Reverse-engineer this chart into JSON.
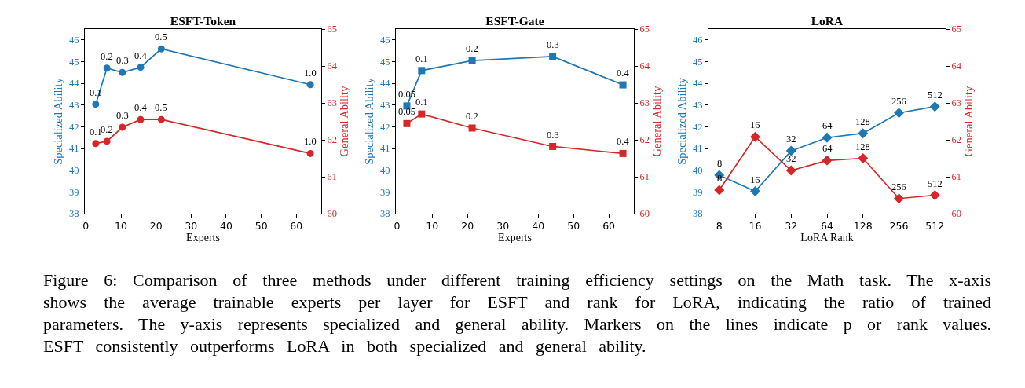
{
  "chart_data": [
    {
      "type": "line",
      "title": "ESFT-Token",
      "xlabel": "Experts",
      "ylabel": "Specialized Ability",
      "y2label": "General Ability",
      "x": [
        2.8,
        6.0,
        10.4,
        15.6,
        21.5,
        64
      ],
      "xlim": [
        -0.3,
        67.1
      ],
      "xticks": [
        0,
        10,
        20,
        30,
        40,
        50,
        60
      ],
      "ylim": [
        38,
        46.5
      ],
      "yticks": [
        38,
        39,
        40,
        41,
        42,
        43,
        44,
        45,
        46
      ],
      "y2lim": [
        60,
        65
      ],
      "y2ticks": [
        60,
        61,
        62,
        63,
        64,
        65
      ],
      "marker": "circle",
      "series": [
        {
          "color": "#1f77b4",
          "values": [
            43.04,
            44.7,
            44.5,
            44.74,
            45.59,
            43.94
          ]
        },
        {
          "color": "#d62728",
          "axis": "y2",
          "values": [
            61.9,
            61.96,
            62.34,
            62.55,
            62.55,
            61.63
          ]
        }
      ],
      "annotations": [
        "Figure 6: Comparison of three methods under different training efficiency settings on the Math task. The x-axis shows the average trainable experts per layer for ESFT and rank for LoRA, indicating the ratio of trained parameters. The y-axis represents specialized and general ability. Markers on the lines indicate p or rank values. ESFT consistently outperforms LoRA in both specialized and general ability.",
        {
          "text": "0.1",
          "x": 2.8,
          "y": 43.04
        },
        {
          "text": "0.2",
          "x": 6.0,
          "y": 44.7
        },
        {
          "text": "0.3",
          "x": 10.4,
          "y": 44.5
        },
        {
          "text": "0.4",
          "x": 15.6,
          "y": 44.74
        },
        {
          "text": "0.5",
          "x": 21.5,
          "y": 45.59
        },
        {
          "text": "1.0",
          "x": 64,
          "y": 43.94
        },
        {
          "text": "0.1",
          "x": 2.8,
          "y": 41.23
        },
        {
          "text": "0.2",
          "x": 6.0,
          "y": 41.33
        },
        {
          "text": "0.3",
          "x": 10.4,
          "y": 41.98
        },
        {
          "text": "0.4",
          "x": 15.6,
          "y": 42.34
        },
        {
          "text": "0.5",
          "x": 21.5,
          "y": 42.34
        },
        {
          "text": "1.0",
          "x": 64,
          "y": 40.77
        }
      ]
    },
    {
      "type": "line",
      "title": "ESFT-Gate",
      "xlabel": "Experts",
      "ylabel": "Specialized Ability",
      "y2label": "General Ability",
      "x": [
        2.8,
        7.0,
        21.3,
        44.1,
        64
      ],
      "xlim": [
        -0.3,
        67.1
      ],
      "xticks": [
        0,
        10,
        20,
        30,
        40,
        50,
        60
      ],
      "ylim": [
        38,
        46.5
      ],
      "yticks": [
        38,
        39,
        40,
        41,
        42,
        43,
        44,
        45,
        46
      ],
      "y2lim": [
        60,
        65
      ],
      "y2ticks": [
        60,
        61,
        62,
        63,
        64,
        65
      ],
      "marker": "square",
      "series": [
        {
          "color": "#1f77b4",
          "values": [
            42.96,
            44.59,
            45.05,
            45.24,
            43.93
          ]
        },
        {
          "color": "#d62728",
          "axis": "y2",
          "values": [
            62.44,
            62.7,
            62.32,
            61.82,
            61.63
          ]
        }
      ],
      "annotations": [
        {
          "text": "0.05",
          "x": 2.8,
          "y": 42.96
        },
        {
          "text": "0.1",
          "x": 7.0,
          "y": 44.59
        },
        {
          "text": "0.2",
          "x": 21.3,
          "y": 45.05
        },
        {
          "text": "0.3",
          "x": 44.1,
          "y": 45.24
        },
        {
          "text": "0.4",
          "x": 64,
          "y": 43.93
        },
        {
          "text": "0.05",
          "x": 2.8,
          "y": 42.15
        },
        {
          "text": "0.1",
          "x": 7.0,
          "y": 42.59
        },
        {
          "text": "0.2",
          "x": 21.3,
          "y": 41.94
        },
        {
          "text": "0.3",
          "x": 44.1,
          "y": 41.09
        },
        {
          "text": "0.4",
          "x": 64,
          "y": 40.77
        }
      ]
    },
    {
      "type": "line",
      "title": "LoRA",
      "xlabel": "LoRA Rank",
      "ylabel": "Specialized Ability",
      "y2label": "General Ability",
      "categories": [
        "8",
        "16",
        "32",
        "64",
        "128",
        "256",
        "512"
      ],
      "ylim": [
        38,
        46.5
      ],
      "yticks": [
        38,
        39,
        40,
        41,
        42,
        43,
        44,
        45,
        46
      ],
      "y2lim": [
        60,
        65
      ],
      "y2ticks": [
        60,
        61,
        62,
        63,
        64,
        65
      ],
      "marker": "diamond",
      "series": [
        {
          "color": "#1f77b4",
          "values": [
            39.77,
            39.03,
            40.89,
            41.5,
            41.7,
            42.64,
            42.93
          ]
        },
        {
          "color": "#d62728",
          "axis": "y2",
          "values": [
            60.64,
            62.08,
            61.17,
            61.44,
            61.5,
            60.41,
            60.5
          ]
        }
      ],
      "annotations": [
        {
          "text": "8",
          "x": "8",
          "y": 39.77
        },
        {
          "text": "16",
          "x": "16",
          "y": 39.03
        },
        {
          "text": "32",
          "x": "32",
          "y": 40.89
        },
        {
          "text": "64",
          "x": "64",
          "y": 41.5
        },
        {
          "text": "128",
          "x": "128",
          "y": 41.7
        },
        {
          "text": "256",
          "x": "256",
          "y": 42.64
        },
        {
          "text": "512",
          "x": "512",
          "y": 42.93
        },
        {
          "text": "8",
          "x": "8",
          "y": 39.09
        },
        {
          "text": "16",
          "x": "16",
          "y": 41.54
        },
        {
          "text": "32",
          "x": "32",
          "y": 39.99
        },
        {
          "text": "64",
          "x": "64",
          "y": 40.45
        },
        {
          "text": "128",
          "x": "128",
          "y": 40.55
        },
        {
          "text": "256",
          "x": "256",
          "y": 38.7
        },
        {
          "text": "512",
          "x": "512",
          "y": 38.85
        }
      ]
    }
  ]
}
